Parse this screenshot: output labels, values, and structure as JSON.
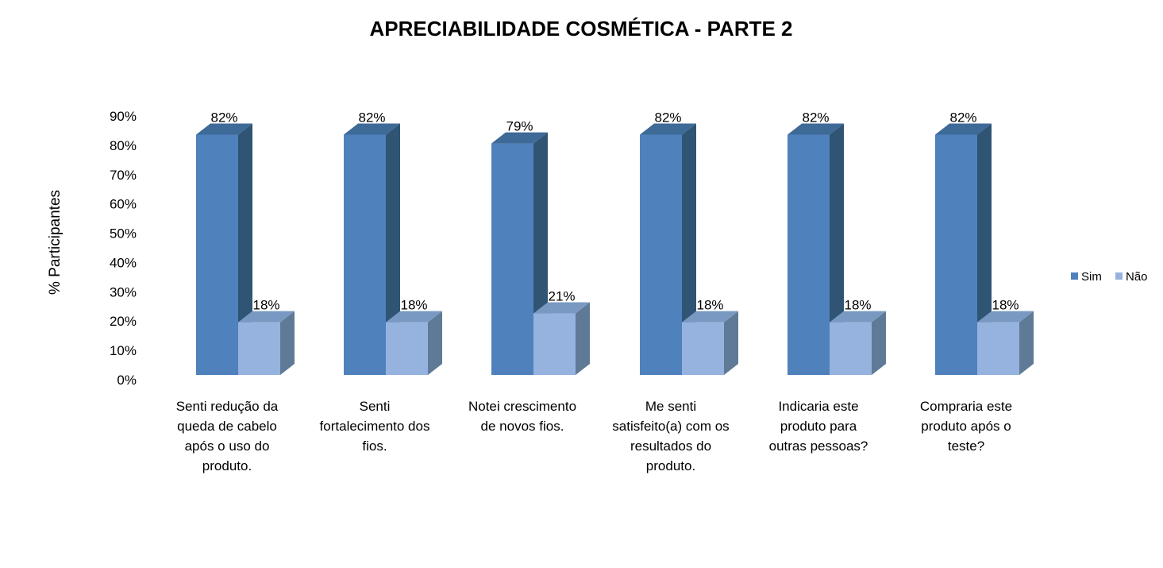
{
  "chart_data": {
    "type": "bar",
    "title": "APRECIABILIDADE COSMÉTICA - PARTE 2",
    "xlabel": "",
    "ylabel": "% Participantes",
    "ylim": [
      0,
      90
    ],
    "ytick_labels": [
      "0%",
      "10%",
      "20%",
      "30%",
      "40%",
      "50%",
      "60%",
      "70%",
      "80%",
      "90%"
    ],
    "yticks": [
      0,
      10,
      20,
      30,
      40,
      50,
      60,
      70,
      80,
      90
    ],
    "grid": false,
    "three_d": true,
    "legend_position": "right",
    "categories": [
      [
        "Senti redução da",
        "queda de cabelo",
        "após o uso do",
        "produto."
      ],
      [
        "Senti",
        "fortalecimento dos",
        "fios."
      ],
      [
        "Notei crescimento",
        "de novos fios."
      ],
      [
        "Me senti",
        "satisfeito(a) com os",
        "resultados do",
        "produto."
      ],
      [
        "Indicaria este",
        "produto para",
        "outras pessoas?"
      ],
      [
        "Compraria este",
        "produto após o",
        "teste?"
      ]
    ],
    "series": [
      {
        "name": "Sim",
        "values": [
          82,
          82,
          79,
          82,
          82,
          82
        ],
        "labels": [
          "82%",
          "82%",
          "79%",
          "82%",
          "82%",
          "82%"
        ],
        "color": "#4F81BD",
        "side_color": "#2F5474",
        "top_color": "#3E6A97"
      },
      {
        "name": "Não",
        "values": [
          18,
          18,
          21,
          18,
          18,
          18
        ],
        "labels": [
          "18%",
          "18%",
          "21%",
          "18%",
          "18%",
          "18%"
        ],
        "color": "#95B3DE",
        "side_color": "#5F7A96",
        "top_color": "#7A99C2"
      }
    ]
  }
}
